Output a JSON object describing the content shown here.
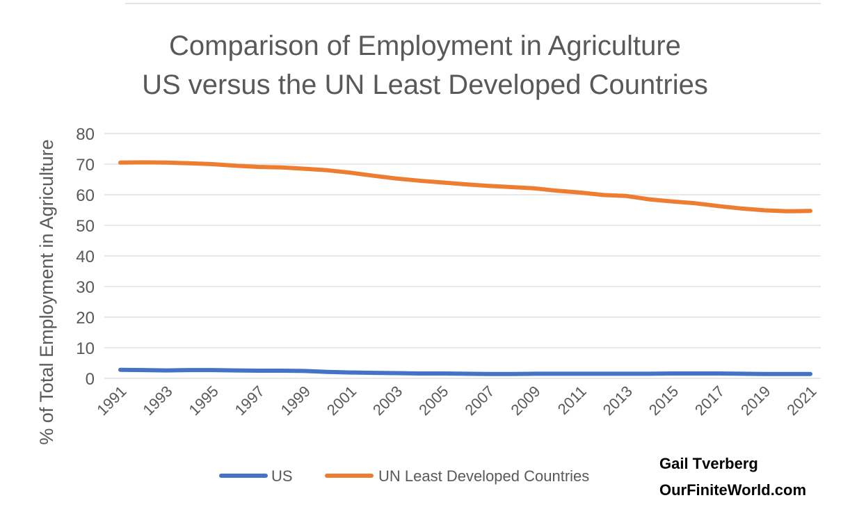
{
  "chart_data": {
    "type": "line",
    "title": "Comparison of Employment in Agriculture",
    "subtitle": "US versus the UN Least Developed Countries",
    "xlabel": "",
    "ylabel": "% of Total Employment in Agriculture",
    "ylim": [
      0,
      80
    ],
    "yticks": [
      "0",
      "10",
      "20",
      "30",
      "40",
      "50",
      "60",
      "70",
      "80"
    ],
    "x": [
      1991,
      1992,
      1993,
      1994,
      1995,
      1996,
      1997,
      1998,
      1999,
      2000,
      2001,
      2002,
      2003,
      2004,
      2005,
      2006,
      2007,
      2008,
      2009,
      2010,
      2011,
      2012,
      2013,
      2014,
      2015,
      2016,
      2017,
      2018,
      2019,
      2020,
      2021
    ],
    "xtick_labels": [
      "1991",
      "1993",
      "1995",
      "1997",
      "1999",
      "2001",
      "2003",
      "2005",
      "2007",
      "2009",
      "2011",
      "2013",
      "2015",
      "2017",
      "2019",
      "2021"
    ],
    "grid": "horizontal",
    "legend_position": "bottom",
    "series": [
      {
        "name": "US",
        "color": "#4472C4",
        "values": [
          2.8,
          2.7,
          2.6,
          2.7,
          2.7,
          2.6,
          2.5,
          2.5,
          2.4,
          2.1,
          1.9,
          1.8,
          1.7,
          1.6,
          1.6,
          1.5,
          1.4,
          1.4,
          1.5,
          1.5,
          1.5,
          1.5,
          1.5,
          1.5,
          1.6,
          1.6,
          1.6,
          1.5,
          1.4,
          1.4,
          1.4
        ]
      },
      {
        "name": "UN Least Developed Countries",
        "color": "#ED7D31",
        "values": [
          70.5,
          70.6,
          70.5,
          70.3,
          70.0,
          69.5,
          69.1,
          68.9,
          68.5,
          68.0,
          67.2,
          66.2,
          65.3,
          64.6,
          64.0,
          63.4,
          62.9,
          62.5,
          62.1,
          61.3,
          60.7,
          59.9,
          59.6,
          58.5,
          57.8,
          57.2,
          56.3,
          55.5,
          54.9,
          54.6,
          54.7
        ]
      }
    ]
  },
  "credit": {
    "author": "Gail Tverberg",
    "site": "OurFiniteWorld.com"
  }
}
